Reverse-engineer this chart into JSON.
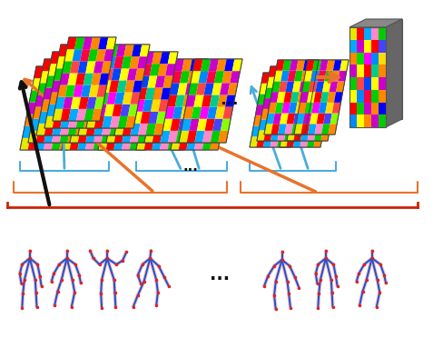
{
  "bg_color": "#ffffff",
  "orange": "#E8732A",
  "blue": "#4AACDC",
  "black": "#111111",
  "b_blue": "#4AACDC",
  "b_orange": "#E8732A",
  "b_red": "#cc2200",
  "skel_blue": "#2255cc",
  "skel_red": "#dd2222",
  "skel_pink": "#ffaaaa",
  "colors_grid": [
    [
      "#e8e800",
      "#ff0000",
      "#00aaff",
      "#ff88cc",
      "#00cc00",
      "#ff8800",
      "#cc00cc",
      "#0000ff"
    ],
    [
      "#00aaff",
      "#cc00cc",
      "#ffff00",
      "#ff0000",
      "#4444ff",
      "#88ff00",
      "#ff8800",
      "#ffff00"
    ],
    [
      "#ff8800",
      "#00dd00",
      "#ff00ff",
      "#0088ff",
      "#ffdd00",
      "#ff4444",
      "#00aaff",
      "#00cc00"
    ],
    [
      "#cc00cc",
      "#ffff00",
      "#ff0000",
      "#00cc88",
      "#ff8800",
      "#0000ff",
      "#ff0000",
      "#cc00cc"
    ],
    [
      "#00cc00",
      "#ff4444",
      "#0044ff",
      "#ffff00",
      "#cc00cc",
      "#ff8800",
      "#00dd00",
      "#ff0000"
    ],
    [
      "#ffff00",
      "#0088ff",
      "#ff0044",
      "#00cc00",
      "#ff8800",
      "#cc00cc",
      "#ffff00",
      "#0088ff"
    ],
    [
      "#ff0000",
      "#00cc00",
      "#cc00cc",
      "#ff8800",
      "#0000ff",
      "#ffff00",
      "#ff4444",
      "#00aaff"
    ],
    [
      "#0088ff",
      "#ffff00",
      "#ff8800",
      "#cc00cc",
      "#00cc00",
      "#ff0000",
      "#0088ff",
      "#ffdd00"
    ]
  ],
  "fig_width": 4.88,
  "fig_height": 3.94,
  "dpi": 100
}
